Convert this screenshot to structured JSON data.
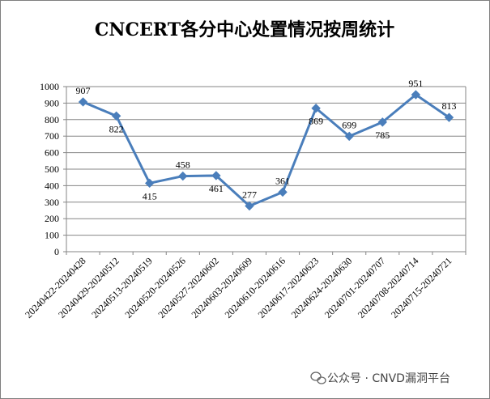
{
  "chart_data": {
    "type": "line",
    "title": "CNCERT各分中心处置情况按周统计",
    "xlabel": "",
    "ylabel": "",
    "categories": [
      "20240422-20240428",
      "20240429-20240512",
      "20240513-20240519",
      "20240520-20240526",
      "20240527-20240602",
      "20240603-20240609",
      "20240610-20240616",
      "20240617-20240623",
      "20240624-20240630",
      "20240701-20240707",
      "20240708-20240714",
      "20240715-20240721"
    ],
    "values": [
      907,
      822,
      415,
      458,
      461,
      277,
      361,
      869,
      699,
      785,
      951,
      813
    ],
    "ylim": [
      0,
      1000
    ],
    "yticks": [
      0,
      100,
      200,
      300,
      400,
      500,
      600,
      700,
      800,
      900,
      1000
    ],
    "grid": true,
    "legend": "none",
    "colors": {
      "line": "#4a7ebb",
      "grid": "#868686",
      "frame": "#868686"
    }
  },
  "watermark": {
    "text": "公众号 · CNVD漏洞平台",
    "icon": "wechat-icon"
  }
}
